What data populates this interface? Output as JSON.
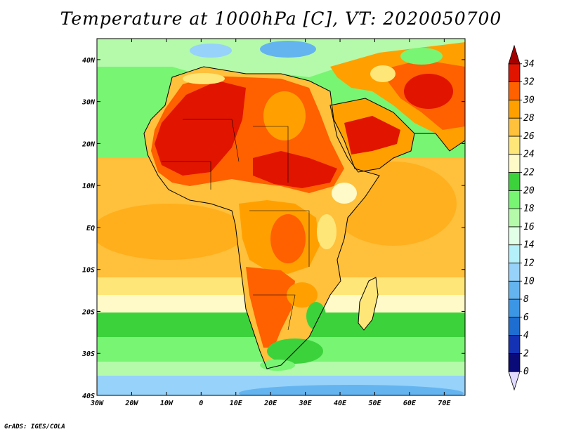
{
  "title": "Temperature at 1000hPa [C], VT: 2020050700",
  "credit": "GrADS: IGES/COLA",
  "map": {
    "lon_range": [
      -30,
      76
    ],
    "lat_range": [
      -40,
      45
    ],
    "lon_ticks": [
      {
        "value": -30,
        "label": "30W"
      },
      {
        "value": -20,
        "label": "20W"
      },
      {
        "value": -10,
        "label": "10W"
      },
      {
        "value": 0,
        "label": "0"
      },
      {
        "value": 10,
        "label": "10E"
      },
      {
        "value": 20,
        "label": "20E"
      },
      {
        "value": 30,
        "label": "30E"
      },
      {
        "value": 40,
        "label": "40E"
      },
      {
        "value": 50,
        "label": "50E"
      },
      {
        "value": 60,
        "label": "60E"
      },
      {
        "value": 70,
        "label": "70E"
      }
    ],
    "lat_ticks": [
      {
        "value": 40,
        "label": "40N"
      },
      {
        "value": 30,
        "label": "30N"
      },
      {
        "value": 20,
        "label": "20N"
      },
      {
        "value": 10,
        "label": "10N"
      },
      {
        "value": 0,
        "label": "EQ"
      },
      {
        "value": -10,
        "label": "10S"
      },
      {
        "value": -20,
        "label": "20S"
      },
      {
        "value": -30,
        "label": "30S"
      },
      {
        "value": -40,
        "label": "40S"
      }
    ]
  },
  "colorbar": {
    "levels": [
      "0",
      "2",
      "4",
      "6",
      "8",
      "10",
      "12",
      "14",
      "16",
      "18",
      "20",
      "22",
      "24",
      "26",
      "28",
      "30",
      "32",
      "34"
    ],
    "colors": [
      "#e1dcff",
      "#0a0a78",
      "#1432b4",
      "#1e6ed2",
      "#3c96e6",
      "#64b4f0",
      "#96d2fa",
      "#b4f0fa",
      "#e1ffe6",
      "#b4faaa",
      "#78f573",
      "#3cd23c",
      "#fffac8",
      "#ffe678",
      "#ffc03c",
      "#ffa000",
      "#ff6000",
      "#e11400",
      "#a50000"
    ]
  }
}
